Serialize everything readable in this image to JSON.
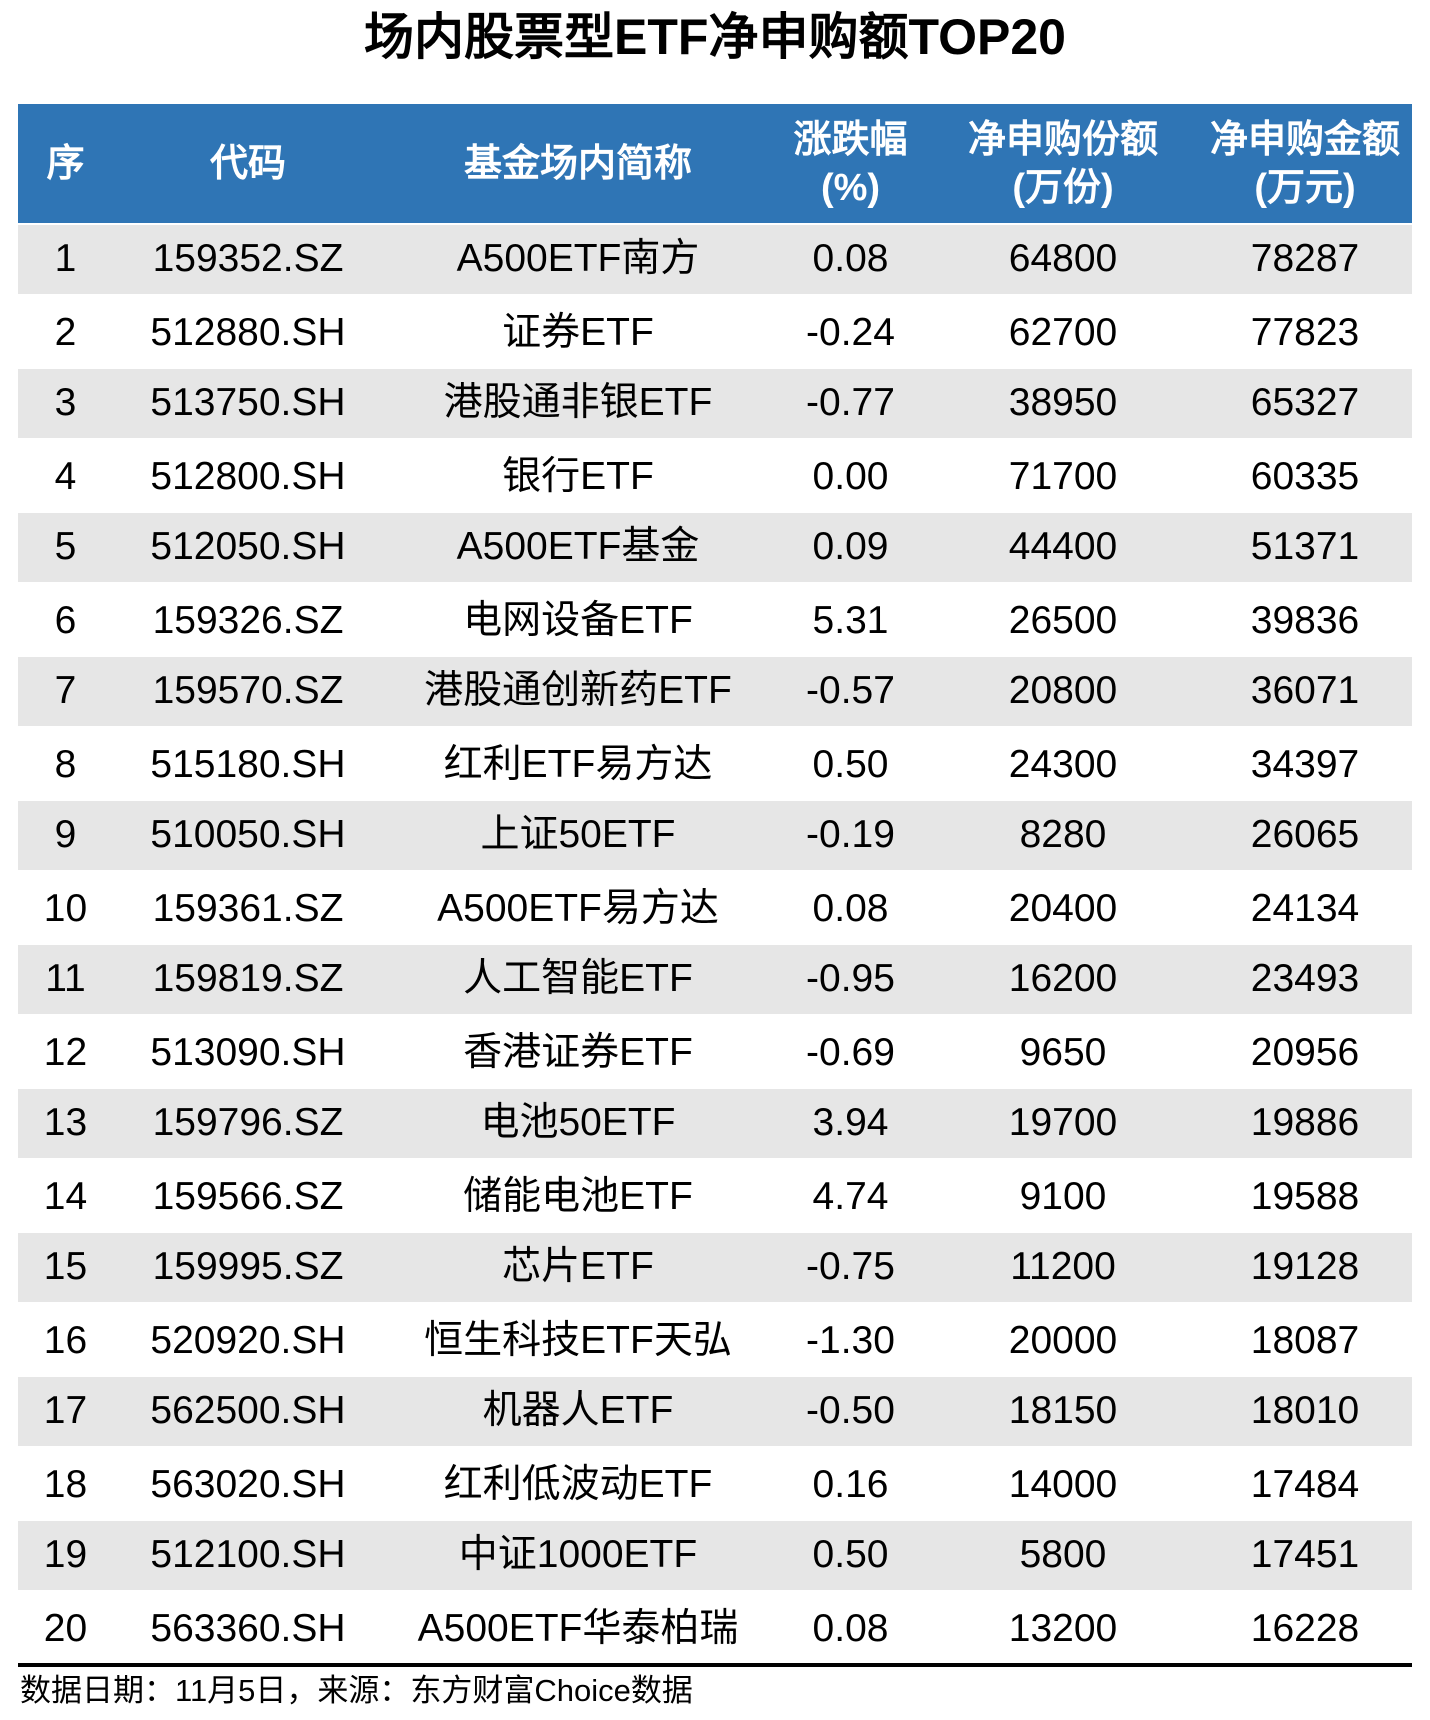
{
  "title": "场内股票型ETF净申购额TOP20",
  "colors": {
    "header_bg": "#2F75B5",
    "header_text": "#FFFFFF",
    "row_alt_bg": "#E6E6E6",
    "row_bg": "#FFFFFF",
    "text": "#000000",
    "bottom_rule": "#000000"
  },
  "table": {
    "headers": [
      {
        "line1": "序",
        "line2": ""
      },
      {
        "line1": "代码",
        "line2": ""
      },
      {
        "line1": "基金场内简称",
        "line2": ""
      },
      {
        "line1": "涨跌幅",
        "line2": "(%)"
      },
      {
        "line1": "净申购份额",
        "line2": "(万份)"
      },
      {
        "line1": "净申购金额",
        "line2": "(万元)"
      }
    ],
    "rows": [
      [
        "1",
        "159352.SZ",
        "A500ETF南方",
        "0.08",
        "64800",
        "78287"
      ],
      [
        "2",
        "512880.SH",
        "证券ETF",
        "-0.24",
        "62700",
        "77823"
      ],
      [
        "3",
        "513750.SH",
        "港股通非银ETF",
        "-0.77",
        "38950",
        "65327"
      ],
      [
        "4",
        "512800.SH",
        "银行ETF",
        "0.00",
        "71700",
        "60335"
      ],
      [
        "5",
        "512050.SH",
        "A500ETF基金",
        "0.09",
        "44400",
        "51371"
      ],
      [
        "6",
        "159326.SZ",
        "电网设备ETF",
        "5.31",
        "26500",
        "39836"
      ],
      [
        "7",
        "159570.SZ",
        "港股通创新药ETF",
        "-0.57",
        "20800",
        "36071"
      ],
      [
        "8",
        "515180.SH",
        "红利ETF易方达",
        "0.50",
        "24300",
        "34397"
      ],
      [
        "9",
        "510050.SH",
        "上证50ETF",
        "-0.19",
        "8280",
        "26065"
      ],
      [
        "10",
        "159361.SZ",
        "A500ETF易方达",
        "0.08",
        "20400",
        "24134"
      ],
      [
        "11",
        "159819.SZ",
        "人工智能ETF",
        "-0.95",
        "16200",
        "23493"
      ],
      [
        "12",
        "513090.SH",
        "香港证券ETF",
        "-0.69",
        "9650",
        "20956"
      ],
      [
        "13",
        "159796.SZ",
        "电池50ETF",
        "3.94",
        "19700",
        "19886"
      ],
      [
        "14",
        "159566.SZ",
        "储能电池ETF",
        "4.74",
        "9100",
        "19588"
      ],
      [
        "15",
        "159995.SZ",
        "芯片ETF",
        "-0.75",
        "11200",
        "19128"
      ],
      [
        "16",
        "520920.SH",
        "恒生科技ETF天弘",
        "-1.30",
        "20000",
        "18087"
      ],
      [
        "17",
        "562500.SH",
        "机器人ETF",
        "-0.50",
        "18150",
        "18010"
      ],
      [
        "18",
        "563020.SH",
        "红利低波动ETF",
        "0.16",
        "14000",
        "17484"
      ],
      [
        "19",
        "512100.SH",
        "中证1000ETF",
        "0.50",
        "5800",
        "17451"
      ],
      [
        "20",
        "563360.SH",
        "A500ETF华泰柏瑞",
        "0.08",
        "13200",
        "16228"
      ]
    ]
  },
  "footer": {
    "note": "数据日期：11月5日，来源：东方财富Choice数据"
  },
  "chart_data": {
    "type": "table",
    "title": "场内股票型ETF净申购额TOP20",
    "columns": [
      "序",
      "代码",
      "基金场内简称",
      "涨跌幅(%)",
      "净申购份额(万份)",
      "净申购金额(万元)"
    ],
    "rows": [
      [
        1,
        "159352.SZ",
        "A500ETF南方",
        0.08,
        64800,
        78287
      ],
      [
        2,
        "512880.SH",
        "证券ETF",
        -0.24,
        62700,
        77823
      ],
      [
        3,
        "513750.SH",
        "港股通非银ETF",
        -0.77,
        38950,
        65327
      ],
      [
        4,
        "512800.SH",
        "银行ETF",
        0.0,
        71700,
        60335
      ],
      [
        5,
        "512050.SH",
        "A500ETF基金",
        0.09,
        44400,
        51371
      ],
      [
        6,
        "159326.SZ",
        "电网设备ETF",
        5.31,
        26500,
        39836
      ],
      [
        7,
        "159570.SZ",
        "港股通创新药ETF",
        -0.57,
        20800,
        36071
      ],
      [
        8,
        "515180.SH",
        "红利ETF易方达",
        0.5,
        24300,
        34397
      ],
      [
        9,
        "510050.SH",
        "上证50ETF",
        -0.19,
        8280,
        26065
      ],
      [
        10,
        "159361.SZ",
        "A500ETF易方达",
        0.08,
        20400,
        24134
      ],
      [
        11,
        "159819.SZ",
        "人工智能ETF",
        -0.95,
        16200,
        23493
      ],
      [
        12,
        "513090.SH",
        "香港证券ETF",
        -0.69,
        9650,
        20956
      ],
      [
        13,
        "159796.SZ",
        "电池50ETF",
        3.94,
        19700,
        19886
      ],
      [
        14,
        "159566.SZ",
        "储能电池ETF",
        4.74,
        9100,
        19588
      ],
      [
        15,
        "159995.SZ",
        "芯片ETF",
        -0.75,
        11200,
        19128
      ],
      [
        16,
        "520920.SH",
        "恒生科技ETF天弘",
        -1.3,
        20000,
        18087
      ],
      [
        17,
        "562500.SH",
        "机器人ETF",
        -0.5,
        18150,
        18010
      ],
      [
        18,
        "563020.SH",
        "红利低波动ETF",
        0.16,
        14000,
        17484
      ],
      [
        19,
        "512100.SH",
        "中证1000ETF",
        0.5,
        5800,
        17451
      ],
      [
        20,
        "563360.SH",
        "A500ETF华泰柏瑞",
        0.08,
        13200,
        16228
      ]
    ],
    "source_note": "数据日期：11月5日，来源：东方财富Choice数据"
  }
}
